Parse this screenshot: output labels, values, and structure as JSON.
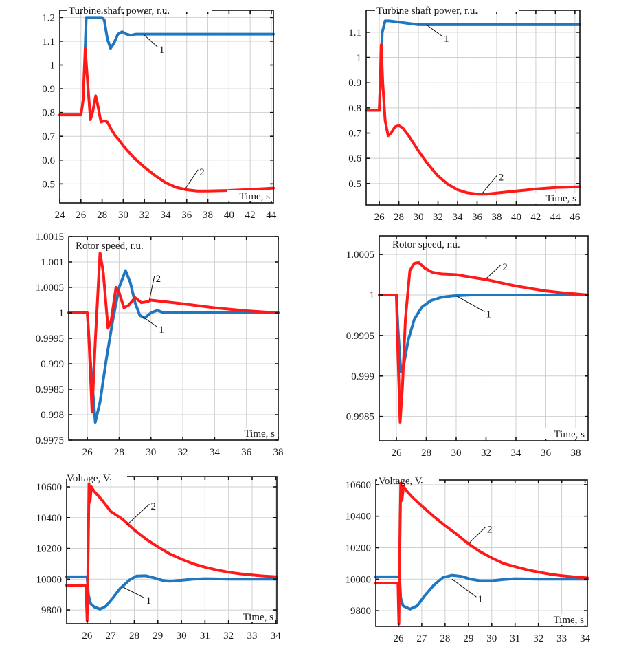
{
  "colors": {
    "series1": "#1f77c0",
    "series2": "#ff1a1a"
  },
  "chart_data": [
    {
      "id": "power-a",
      "type": "line",
      "title": "Turbine shaft power, r.u.",
      "xlabel": "Time, s",
      "ylabel": "",
      "xlim": [
        24,
        44.2
      ],
      "ylim": [
        0.42,
        1.23
      ],
      "xticks": [
        24,
        26,
        28,
        30,
        32,
        34,
        36,
        38,
        40,
        42,
        44
      ],
      "xtick_labels": [
        "24",
        "26",
        "28",
        "30",
        "32",
        "34",
        "36",
        "38",
        "40",
        "42",
        "44"
      ],
      "yticks": [
        0.5,
        0.6,
        0.7,
        0.8,
        0.9,
        1.0,
        1.1,
        1.2
      ],
      "ytick_labels": [
        "0.5",
        "0.6",
        "0.7",
        "0.8",
        "0.9",
        "1",
        "1.1",
        "1.2"
      ],
      "grid": true,
      "series": [
        {
          "name": "1",
          "color_key": "series1",
          "x": [
            24,
            26.4,
            26.5,
            27,
            28,
            28.2,
            28.5,
            28.8,
            29.1,
            29.5,
            29.9,
            30.3,
            30.7,
            31.2,
            32,
            36,
            44.2
          ],
          "y": [
            null,
            1.07,
            1.2,
            1.2,
            1.2,
            1.19,
            1.11,
            1.07,
            1.09,
            1.13,
            1.14,
            1.13,
            1.125,
            1.13,
            1.13,
            1.13,
            1.13
          ]
        },
        {
          "name": "2",
          "color_key": "series2",
          "x": [
            24,
            26,
            26.2,
            26.4,
            26.6,
            26.9,
            27.1,
            27.4,
            27.6,
            27.9,
            28.2,
            28.5,
            28.8,
            29.2,
            29.6,
            30,
            31,
            32,
            33,
            34,
            35,
            36,
            37,
            38,
            40,
            42,
            44.2
          ],
          "y": [
            0.79,
            0.79,
            0.85,
            1.07,
            0.95,
            0.77,
            0.8,
            0.87,
            0.83,
            0.76,
            0.765,
            0.76,
            0.735,
            0.705,
            0.685,
            0.66,
            0.61,
            0.57,
            0.535,
            0.505,
            0.485,
            0.475,
            0.47,
            0.47,
            0.472,
            0.476,
            0.482
          ]
        }
      ],
      "annotations": [
        {
          "text": "1",
          "x": 33.4,
          "y": 1.06,
          "target_x": 31.9,
          "target_y": 1.13
        },
        {
          "text": "2",
          "x": 37.2,
          "y": 0.545,
          "target_x": 35.8,
          "target_y": 0.475
        }
      ]
    },
    {
      "id": "power-b",
      "type": "line",
      "title": "Turbine shaft power, r.u.",
      "xlabel": "Time, s",
      "ylabel": "",
      "xlim": [
        24.66,
        46.5
      ],
      "ylim": [
        0.415,
        1.187
      ],
      "xticks": [
        26,
        28,
        30,
        32,
        34,
        36,
        38,
        40,
        42,
        44,
        46
      ],
      "xtick_labels": [
        "26",
        "28",
        "30",
        "32",
        "34",
        "36",
        "38",
        "40",
        "42",
        "44",
        "46"
      ],
      "yticks": [
        0.5,
        0.6,
        0.7,
        0.8,
        0.9,
        1.0,
        1.1
      ],
      "ytick_labels": [
        "0.5",
        "0.6",
        "0.7",
        "0.8",
        "0.9",
        "1",
        "1.1"
      ],
      "grid": true,
      "series": [
        {
          "name": "1",
          "color_key": "series1",
          "x": [
            24.66,
            26,
            26.1,
            26.3,
            26.6,
            27,
            28,
            29,
            30,
            31,
            34,
            46.5
          ],
          "y": [
            0.79,
            0.79,
            0.9,
            1.1,
            1.145,
            1.145,
            1.14,
            1.135,
            1.13,
            1.13,
            1.13,
            1.13
          ]
        },
        {
          "name": "2",
          "color_key": "series2",
          "x": [
            24.66,
            26,
            26.1,
            26.2,
            26.35,
            26.6,
            26.9,
            27.2,
            27.6,
            28,
            28.4,
            29,
            30,
            31,
            32,
            33,
            34,
            35,
            36,
            37,
            38,
            40,
            42,
            44,
            46.5
          ],
          "y": [
            0.79,
            0.79,
            0.9,
            1.05,
            0.9,
            0.75,
            0.69,
            0.7,
            0.725,
            0.73,
            0.72,
            0.69,
            0.63,
            0.575,
            0.53,
            0.497,
            0.475,
            0.463,
            0.458,
            0.458,
            0.462,
            0.47,
            0.478,
            0.484,
            0.487
          ]
        }
      ],
      "annotations": [
        {
          "text": "1",
          "x": 32.6,
          "y": 1.07,
          "target_x": 30.8,
          "target_y": 1.13
        },
        {
          "text": "2",
          "x": 38.2,
          "y": 0.52,
          "target_x": 36.5,
          "target_y": 0.46
        }
      ]
    },
    {
      "id": "speed-a",
      "type": "line",
      "title": "Rotor speed, r.u.",
      "xlabel": "Time, s",
      "ylabel": "",
      "xlim": [
        24.83,
        38.0
      ],
      "ylim": [
        0.9975,
        1.0015
      ],
      "xticks": [
        26,
        28,
        30,
        32,
        34,
        36,
        38
      ],
      "xtick_labels": [
        "26",
        "28",
        "30",
        "32",
        "34",
        "36",
        "38"
      ],
      "yticks": [
        0.9975,
        0.998,
        0.9985,
        0.999,
        0.9995,
        1.0,
        1.0005,
        1.001,
        1.0015
      ],
      "ytick_labels": [
        "0.9975",
        "0.998",
        "0.9985",
        "0.999",
        "0.9995",
        "1",
        "1.0005",
        "1.001",
        "1.0015"
      ],
      "grid": true,
      "series": [
        {
          "name": "1",
          "color_key": "series1",
          "x": [
            24.83,
            26,
            26.2,
            26.5,
            26.8,
            27.2,
            27.6,
            28,
            28.4,
            28.7,
            29,
            29.3,
            29.6,
            30,
            30.4,
            30.8,
            31.2,
            32,
            38
          ],
          "y": [
            1.0,
            1.0,
            0.99905,
            0.99785,
            0.99825,
            0.9991,
            0.99985,
            1.0005,
            1.00083,
            1.0006,
            1.0002,
            0.99995,
            0.9999,
            1.0,
            1.00005,
            1.0,
            1.0,
            1.0,
            1.0
          ]
        },
        {
          "name": "2",
          "color_key": "series2",
          "x": [
            24.83,
            26,
            26.1,
            26.3,
            26.5,
            26.8,
            27.0,
            27.3,
            27.5,
            27.8,
            28.0,
            28.3,
            28.6,
            29.0,
            29.4,
            29.8,
            30,
            32,
            34,
            36,
            38
          ],
          "y": [
            1.0,
            1.0,
            0.9995,
            0.99805,
            0.99945,
            1.00118,
            1.0008,
            0.9997,
            0.99985,
            1.0005,
            1.0004,
            1.0001,
            1.00015,
            1.0003,
            1.0002,
            1.00022,
            1.00025,
            1.00018,
            1.0001,
            1.00004,
            1.0
          ]
        }
      ],
      "annotations": [
        {
          "text": "2",
          "x": 30.3,
          "y": 1.00065,
          "target_x": 29.9,
          "target_y": 1.00025
        },
        {
          "text": "1",
          "x": 30.5,
          "y": 0.99965,
          "target_x": 29.5,
          "target_y": 0.99992
        }
      ]
    },
    {
      "id": "speed-b",
      "type": "line",
      "title": "Rotor speed, r.u.",
      "xlabel": "Time, s",
      "ylabel": "",
      "xlim": [
        24.85,
        38.83
      ],
      "ylim": [
        0.9982,
        1.00073
      ],
      "xticks": [
        26,
        28,
        30,
        32,
        34,
        36,
        38
      ],
      "xtick_labels": [
        "26",
        "28",
        "30",
        "32",
        "34",
        "36",
        "38"
      ],
      "yticks": [
        0.9985,
        0.999,
        0.9995,
        1.0,
        1.0005
      ],
      "ytick_labels": [
        "0.9985",
        "0.999",
        "0.9995",
        "1",
        "1.0005"
      ],
      "grid": true,
      "series": [
        {
          "name": "1",
          "color_key": "series1",
          "x": [
            24.85,
            26,
            26.1,
            26.3,
            26.5,
            26.8,
            27.2,
            27.7,
            28.3,
            29,
            29.8,
            31,
            33,
            38.83
          ],
          "y": [
            1.0,
            1.0,
            0.9996,
            0.99905,
            0.99915,
            0.99945,
            0.9997,
            0.99985,
            0.99993,
            0.99997,
            0.99999,
            1.0,
            1.0,
            1.0
          ]
        },
        {
          "name": "2",
          "color_key": "series2",
          "x": [
            24.85,
            26,
            26.1,
            26.25,
            26.4,
            26.6,
            26.9,
            27.2,
            27.5,
            27.9,
            28.4,
            29,
            30,
            31,
            32,
            33,
            34,
            35,
            36,
            37,
            38.83
          ],
          "y": [
            1.0,
            1.0,
            0.9993,
            0.99843,
            0.99885,
            0.9997,
            1.0003,
            1.00039,
            1.0004,
            1.00033,
            1.00028,
            1.00026,
            1.00025,
            1.00022,
            1.00019,
            1.00015,
            1.00011,
            1.00008,
            1.00005,
            1.00003,
            1.0
          ]
        }
      ],
      "annotations": [
        {
          "text": "2",
          "x": 33.1,
          "y": 1.00033,
          "target_x": 32,
          "target_y": 1.0002
        },
        {
          "text": "1",
          "x": 32.0,
          "y": 0.99975,
          "target_x": 30.0,
          "target_y": 0.99999
        }
      ]
    },
    {
      "id": "voltage-a",
      "type": "line",
      "title": "Voltage, V",
      "xlabel": "Time, s",
      "ylabel": "",
      "xlim": [
        25.13,
        34.05
      ],
      "ylim": [
        9711,
        10667
      ],
      "xticks": [
        26,
        27,
        28,
        29,
        30,
        31,
        32,
        33,
        34
      ],
      "xtick_labels": [
        "26",
        "27",
        "28",
        "29",
        "30",
        "31",
        "32",
        "33",
        "34"
      ],
      "yticks": [
        9800,
        10000,
        10200,
        10400,
        10600
      ],
      "ytick_labels": [
        "9800",
        "10000",
        "10200",
        "10400",
        "10600"
      ],
      "grid": true,
      "series": [
        {
          "name": "1",
          "color_key": "series1",
          "x": [
            25.13,
            26.0,
            26.05,
            26.15,
            26.3,
            26.55,
            26.8,
            27.1,
            27.4,
            27.8,
            28.1,
            28.5,
            28.8,
            29.2,
            29.5,
            30,
            30.5,
            31,
            31.5,
            32,
            34.05
          ],
          "y": [
            10015,
            10015,
            9900,
            9840,
            9820,
            9805,
            9825,
            9880,
            9940,
            9995,
            10020,
            10022,
            10010,
            9992,
            9987,
            9993,
            10000,
            10003,
            10002,
            10000,
            10000
          ]
        },
        {
          "name": "2",
          "color_key": "series2",
          "x": [
            25.13,
            25.95,
            26.0,
            26.03,
            26.08,
            26.12,
            26.18,
            26.3,
            26.6,
            27,
            27.5,
            28,
            28.5,
            29,
            29.5,
            30,
            30.5,
            31,
            31.5,
            32,
            32.5,
            33,
            33.5,
            34.05
          ],
          "y": [
            9960,
            9960,
            9730,
            10050,
            10620,
            10500,
            10600,
            10570,
            10520,
            10440,
            10390,
            10320,
            10260,
            10210,
            10165,
            10130,
            10100,
            10078,
            10060,
            10045,
            10035,
            10027,
            10020,
            10015
          ]
        }
      ],
      "annotations": [
        {
          "text": "2",
          "x": 28.7,
          "y": 10465,
          "target_x": 27.7,
          "target_y": 10355
        },
        {
          "text": "1",
          "x": 28.5,
          "y": 9855,
          "target_x": 27.5,
          "target_y": 9950
        }
      ]
    },
    {
      "id": "voltage-b",
      "type": "line",
      "title": "Voltage, V",
      "xlabel": "Time, s",
      "ylabel": "",
      "xlim": [
        25.03,
        34.1
      ],
      "ylim": [
        9700,
        10630
      ],
      "xticks": [
        26,
        27,
        28,
        29,
        30,
        31,
        32,
        33,
        34
      ],
      "xtick_labels": [
        "26",
        "27",
        "28",
        "29",
        "30",
        "31",
        "32",
        "33",
        "34"
      ],
      "yticks": [
        9800,
        10000,
        10200,
        10400,
        10600
      ],
      "ytick_labels": [
        "9800",
        "10000",
        "10200",
        "10400",
        "10600"
      ],
      "grid": true,
      "series": [
        {
          "name": "1",
          "color_key": "series1",
          "x": [
            25.03,
            26.05,
            26.1,
            26.2,
            26.5,
            26.8,
            27.1,
            27.5,
            27.9,
            28.3,
            28.7,
            29.1,
            29.5,
            30,
            30.5,
            31,
            32,
            34.1
          ],
          "y": [
            10015,
            10015,
            9880,
            9830,
            9810,
            9830,
            9890,
            9960,
            10010,
            10025,
            10018,
            10000,
            9990,
            9990,
            9998,
            10003,
            10000,
            10000
          ]
        },
        {
          "name": "2",
          "color_key": "series2",
          "x": [
            25.03,
            25.98,
            26.02,
            26.05,
            26.1,
            26.15,
            26.22,
            26.35,
            26.6,
            27,
            27.5,
            28,
            28.5,
            29,
            29.5,
            30,
            30.5,
            31,
            31.5,
            32,
            32.5,
            33,
            33.5,
            34.1
          ],
          "y": [
            9975,
            9975,
            9715,
            10100,
            10610,
            10500,
            10590,
            10560,
            10520,
            10465,
            10400,
            10340,
            10285,
            10225,
            10175,
            10135,
            10100,
            10080,
            10060,
            10045,
            10032,
            10022,
            10015,
            10008
          ]
        }
      ],
      "annotations": [
        {
          "text": "2",
          "x": 29.8,
          "y": 10310,
          "target_x": 29.0,
          "target_y": 10225
        },
        {
          "text": "1",
          "x": 29.4,
          "y": 9865,
          "target_x": 28.3,
          "target_y": 10000
        }
      ]
    }
  ]
}
